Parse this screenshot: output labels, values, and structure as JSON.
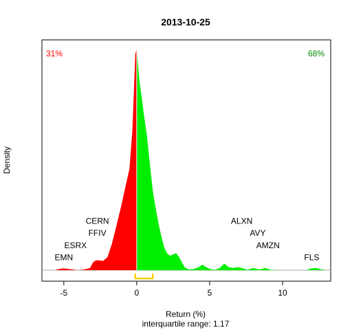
{
  "chart_data": {
    "type": "area",
    "title": "2013-10-25",
    "xlabel": "Return (%)",
    "subtitle": "interquartile range: 1.17",
    "ylabel": "Density",
    "xlim": [
      -6.5,
      13.3
    ],
    "x_ticks": [
      -5,
      0,
      5,
      10
    ],
    "pct_negative": "31%",
    "pct_positive": "68%",
    "colors": {
      "negative": "#ff0000",
      "positive": "#00ee00",
      "iqr": "#ffcc00",
      "baseline": "#aaaaaa"
    },
    "iqr": [
      -0.1,
      1.1
    ],
    "density_x": [
      -6.0,
      -5.6,
      -5.3,
      -5.0,
      -4.7,
      -4.4,
      -4.0,
      -3.6,
      -3.2,
      -3.0,
      -2.8,
      -2.6,
      -2.3,
      -2.0,
      -1.7,
      -1.4,
      -1.1,
      -0.8,
      -0.5,
      -0.3,
      -0.1,
      0.0,
      0.1,
      0.2,
      0.35,
      0.5,
      0.7,
      0.9,
      1.1,
      1.3,
      1.5,
      1.7,
      1.9,
      2.1,
      2.3,
      2.5,
      2.7,
      2.9,
      3.1,
      3.3,
      3.6,
      3.9,
      4.2,
      4.5,
      4.8,
      5.1,
      5.4,
      5.7,
      6.0,
      6.3,
      6.6,
      6.9,
      7.2,
      7.6,
      8.0,
      8.4,
      8.8,
      9.2,
      9.6,
      10.0,
      10.4,
      10.8,
      11.2,
      11.6,
      12.0,
      12.3,
      12.6,
      13.0
    ],
    "density_y": [
      0.0,
      0.0,
      0.006,
      0.008,
      0.006,
      0.003,
      0.0,
      0.003,
      0.01,
      0.035,
      0.045,
      0.045,
      0.042,
      0.06,
      0.12,
      0.2,
      0.28,
      0.37,
      0.46,
      0.63,
      0.98,
      1.0,
      0.92,
      0.85,
      0.78,
      0.7,
      0.61,
      0.48,
      0.36,
      0.28,
      0.21,
      0.15,
      0.1,
      0.075,
      0.065,
      0.072,
      0.077,
      0.06,
      0.035,
      0.012,
      0.003,
      0.005,
      0.012,
      0.025,
      0.012,
      0.004,
      0.002,
      0.01,
      0.03,
      0.014,
      0.01,
      0.014,
      0.01,
      0.002,
      0.01,
      0.003,
      0.01,
      0.002,
      0.001,
      0.0,
      0.0,
      0.0,
      0.0,
      0.0,
      0.008,
      0.01,
      0.004,
      0.0
    ],
    "stock_labels": [
      {
        "name": "EMN",
        "x": -5.0,
        "level": 0.045
      },
      {
        "name": "ESRX",
        "x": -4.2,
        "level": 0.1
      },
      {
        "name": "FFIV",
        "x": -2.7,
        "level": 0.155
      },
      {
        "name": "CERN",
        "x": -2.7,
        "level": 0.21
      },
      {
        "name": "ALXN",
        "x": 7.2,
        "level": 0.21
      },
      {
        "name": "AVY",
        "x": 8.3,
        "level": 0.155
      },
      {
        "name": "AMZN",
        "x": 9.0,
        "level": 0.1
      },
      {
        "name": "FLS",
        "x": 12.0,
        "level": 0.045
      }
    ]
  }
}
